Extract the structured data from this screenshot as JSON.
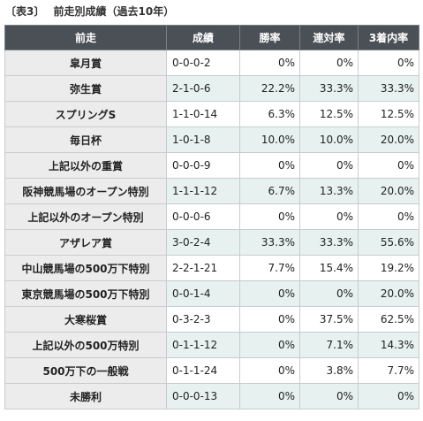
{
  "caption": {
    "label": "〔表3〕",
    "title": "前走別成績（過去10年）"
  },
  "table": {
    "headers": [
      "前走",
      "成績",
      "勝率",
      "連対率",
      "3着内率"
    ],
    "rows": [
      {
        "race": "皐月賞",
        "record": "0-0-0-2",
        "win": "0%",
        "rentai": "0%",
        "top3": "0%"
      },
      {
        "race": "弥生賞",
        "record": "2-1-0-6",
        "win": "22.2%",
        "rentai": "33.3%",
        "top3": "33.3%"
      },
      {
        "race": "スプリングS",
        "record": "1-1-0-14",
        "win": "6.3%",
        "rentai": "12.5%",
        "top3": "12.5%"
      },
      {
        "race": "毎日杯",
        "record": "1-0-1-8",
        "win": "10.0%",
        "rentai": "10.0%",
        "top3": "20.0%"
      },
      {
        "race": "上記以外の重賞",
        "record": "0-0-0-9",
        "win": "0%",
        "rentai": "0%",
        "top3": "0%"
      },
      {
        "race": "阪神競馬場のオープン特別",
        "record": "1-1-1-12",
        "win": "6.7%",
        "rentai": "13.3%",
        "top3": "20.0%"
      },
      {
        "race": "上記以外のオープン特別",
        "record": "0-0-0-6",
        "win": "0%",
        "rentai": "0%",
        "top3": "0%"
      },
      {
        "race": "アザレア賞",
        "record": "3-0-2-4",
        "win": "33.3%",
        "rentai": "33.3%",
        "top3": "55.6%"
      },
      {
        "race": "中山競馬場の500万下特別",
        "record": "2-2-1-21",
        "win": "7.7%",
        "rentai": "15.4%",
        "top3": "19.2%"
      },
      {
        "race": "東京競馬場の500万下特別",
        "record": "0-0-1-4",
        "win": "0%",
        "rentai": "0%",
        "top3": "20.0%"
      },
      {
        "race": "大寒桜賞",
        "record": "0-3-2-3",
        "win": "0%",
        "rentai": "37.5%",
        "top3": "62.5%"
      },
      {
        "race": "上記以外の500万特別",
        "record": "0-1-1-12",
        "win": "0%",
        "rentai": "7.1%",
        "top3": "14.3%"
      },
      {
        "race": "500万下の一般戦",
        "record": "0-1-1-24",
        "win": "0%",
        "rentai": "3.8%",
        "top3": "7.7%"
      },
      {
        "race": "未勝利",
        "record": "0-0-0-13",
        "win": "0%",
        "rentai": "0%",
        "top3": "0%"
      }
    ]
  },
  "colors": {
    "header_bg": "#4b5057",
    "race_cell_bg": "#ececec",
    "shaded_row_bg": "#e6f1f0"
  }
}
